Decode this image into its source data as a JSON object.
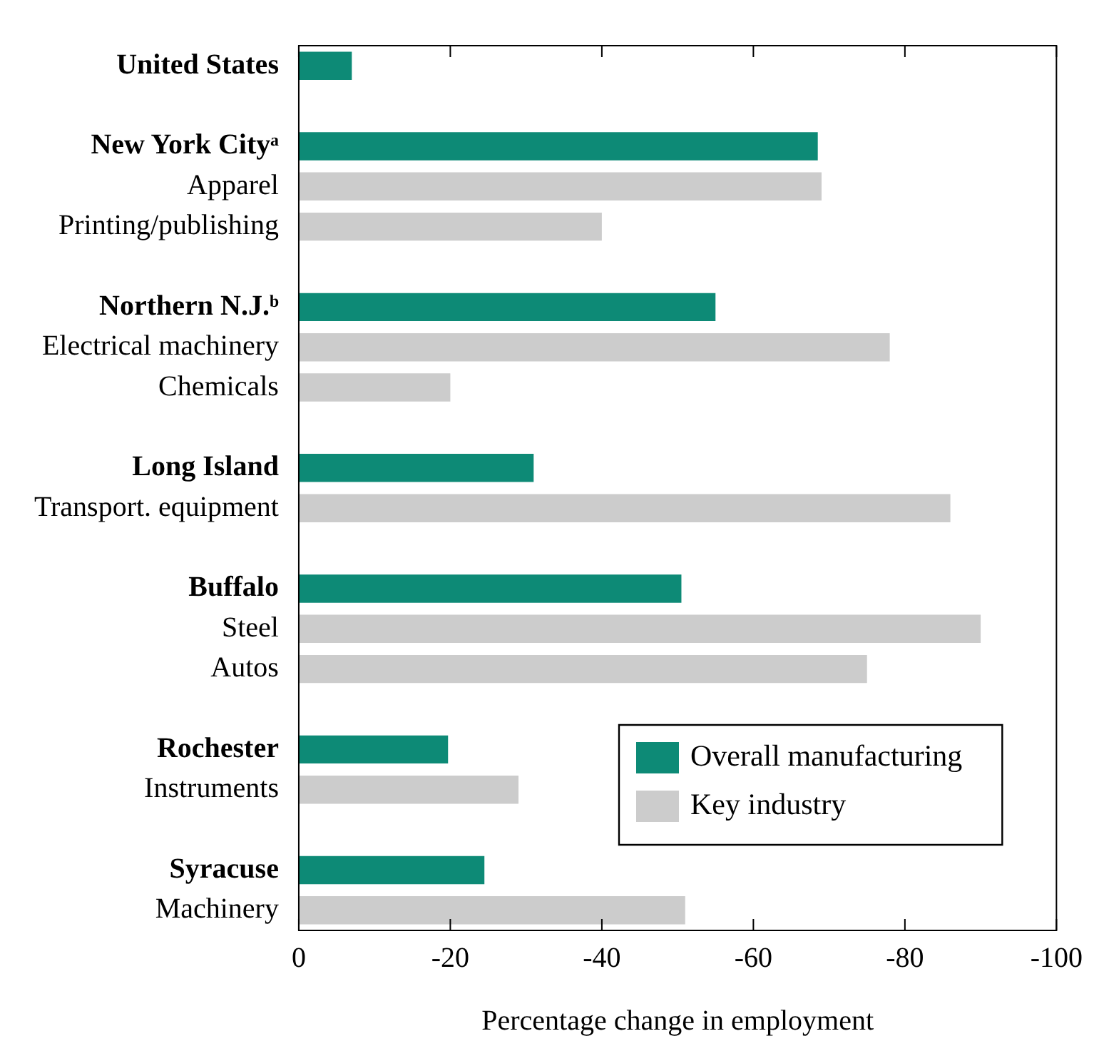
{
  "chart_data": {
    "type": "bar",
    "orientation": "horizontal",
    "xlabel": "Percentage change in employment",
    "categories": [
      "United States",
      null,
      "New York Cityᵃ",
      "Apparel",
      "Printing/publishing",
      null,
      "Northern N.J.ᵇ",
      "Electrical machinery",
      "Chemicals",
      null,
      "Long Island",
      "Transport. equipment",
      null,
      "Buffalo",
      "Steel",
      "Autos",
      null,
      "Rochester",
      "Instruments",
      null,
      "Syracuse",
      "Machinery"
    ],
    "series": [
      {
        "name": "Overall manufacturing",
        "color": "#0d8a76",
        "values": [
          -7,
          null,
          -68.5,
          null,
          null,
          null,
          -55,
          null,
          null,
          null,
          -31,
          null,
          null,
          -50.5,
          null,
          null,
          null,
          -19.7,
          null,
          null,
          -24.5,
          null
        ]
      },
      {
        "name": "Key industry",
        "color": "#cccccc",
        "values": [
          null,
          null,
          null,
          -69,
          -40,
          null,
          null,
          -78,
          -20,
          null,
          null,
          -86,
          null,
          null,
          -90,
          -75,
          null,
          null,
          -29,
          null,
          null,
          -51
        ]
      }
    ],
    "xlim": [
      0,
      -100
    ],
    "xticks": [
      0,
      -20,
      -40,
      -60,
      -80,
      -100
    ],
    "legend": "bottom right",
    "grid": false
  }
}
